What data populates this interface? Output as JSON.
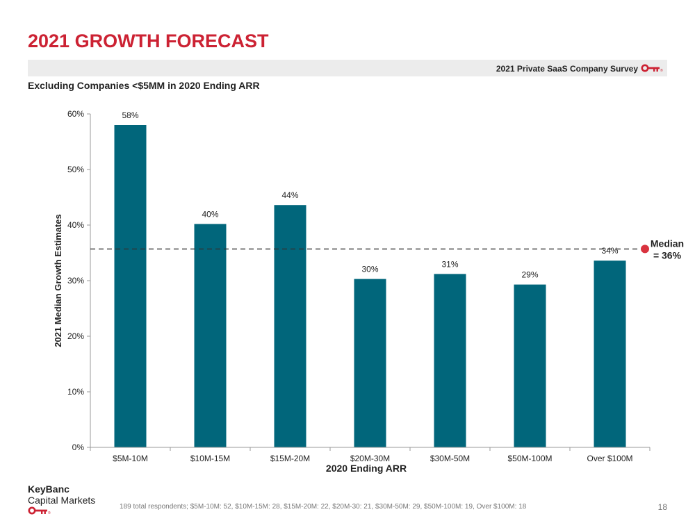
{
  "slide": {
    "title": "2021 GROWTH FORECAST",
    "survey_label": "2021 Private SaaS Company Survey",
    "subtitle": "Excluding Companies <$5MM in 2020 Ending ARR",
    "brand_line1": "KeyBanc",
    "brand_line2": "Capital Markets",
    "footnote": "189 total respondents; $5M-10M: 52, $10M-15M: 28, $15M-20M: 22, $20M-30: 21, $30M-50M: 29, $50M-100M: 19, Over $100M: 18",
    "page_number": "18",
    "key_icon": "key-icon"
  },
  "chart_data": {
    "type": "bar",
    "categories": [
      "$5M-10M",
      "$10M-15M",
      "$15M-20M",
      "$20M-30M",
      "$30M-50M",
      "$50M-100M",
      "Over $100M"
    ],
    "values": [
      58,
      40,
      44,
      30,
      31,
      29,
      34
    ],
    "plotted_values": [
      58,
      40.2,
      43.6,
      30.3,
      31.2,
      29.3,
      33.6
    ],
    "data_labels": [
      "58%",
      "40%",
      "44%",
      "30%",
      "31%",
      "29%",
      "34%"
    ],
    "xlabel": "2020 Ending ARR",
    "ylabel": "2021 Median Growth Estimates",
    "ylim": [
      0,
      60
    ],
    "yticks": [
      0,
      10,
      20,
      30,
      40,
      50,
      60
    ],
    "ytick_labels": [
      "0%",
      "10%",
      "20%",
      "30%",
      "40%",
      "50%",
      "60%"
    ],
    "grid": false,
    "bar_color": "#01667b",
    "median": {
      "value": 35.7,
      "label_line1": "Median",
      "label_line2": "= 36%",
      "marker_color": "#d9333f",
      "line_color": "#333333"
    },
    "accent_color": "#cc2233"
  }
}
